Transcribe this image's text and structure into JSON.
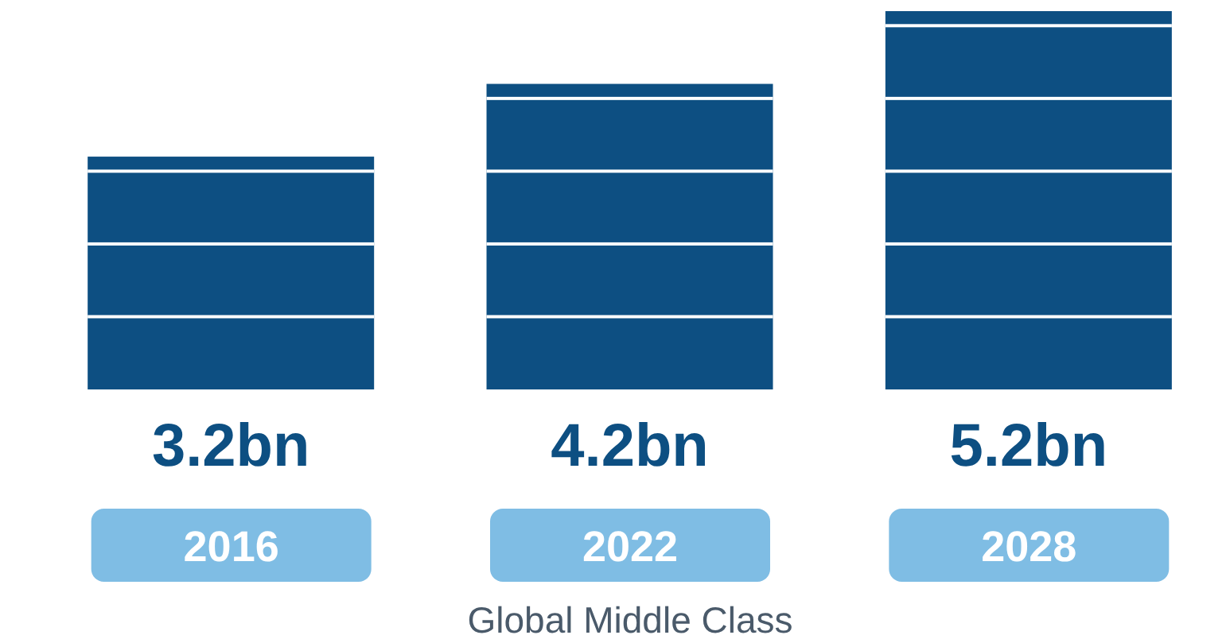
{
  "chart_data": {
    "type": "bar",
    "xlabel": "Global Middle Class",
    "categories": [
      "2016",
      "2022",
      "2028"
    ],
    "values": [
      3.2,
      4.2,
      5.2
    ],
    "value_labels": [
      "3.2bn",
      "4.2bn",
      "5.2bn"
    ],
    "color": "#0d4f82"
  }
}
